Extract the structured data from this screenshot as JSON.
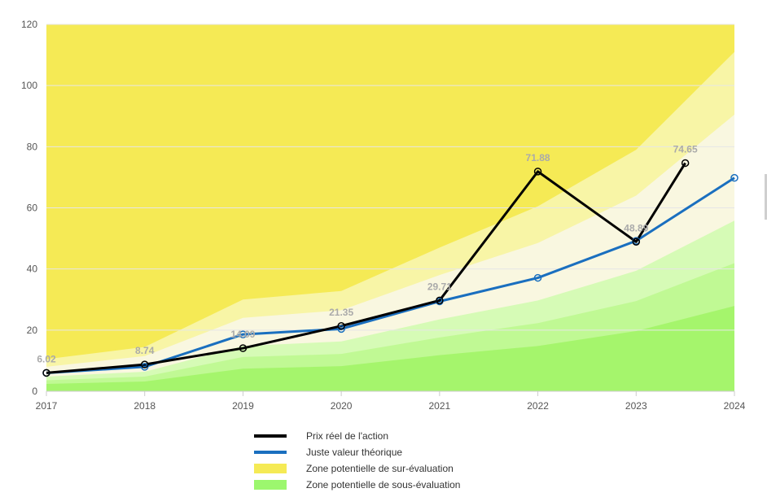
{
  "chart_data": {
    "type": "line",
    "x": [
      2017,
      2018,
      2019,
      2020,
      2021,
      2022,
      2023,
      2024
    ],
    "ylim": [
      0,
      120
    ],
    "yticks": [
      0,
      20,
      40,
      60,
      80,
      100,
      120
    ],
    "xticks": [
      "2017",
      "2018",
      "2019",
      "2020",
      "2021",
      "2022",
      "2023",
      "2024"
    ],
    "grid": true,
    "legend_position": "bottom",
    "series": [
      {
        "name": "Prix réel de l'action",
        "color": "#000000",
        "x": [
          2017,
          2018,
          2019,
          2020,
          2021,
          2022,
          2023,
          2023.5
        ],
        "values": [
          6.02,
          8.74,
          14.09,
          21.35,
          29.71,
          71.88,
          48.89,
          74.65
        ],
        "labels": [
          "6.02",
          "8.74",
          "14.09",
          "21.35",
          "29.71",
          "71.88",
          "48.89",
          "74.65"
        ]
      },
      {
        "name": "Juste valeur théorique",
        "color": "#1a6fbf",
        "x": [
          2017,
          2018,
          2019,
          2020,
          2021,
          2022,
          2023,
          2024
        ],
        "values": [
          6.0,
          8.0,
          18.6,
          20.4,
          29.4,
          37.1,
          49.2,
          69.8
        ]
      }
    ],
    "overvaluation_zone": {
      "name": "Zone potentielle de sur-évaluation",
      "color": "#f5ea55",
      "upper_bound": 120,
      "bands": [
        {
          "upper": [
            10.5,
            14.5,
            30.0,
            32.8,
            47.0,
            60.5,
            79.0,
            111.0
          ],
          "color": "#f8f5a6"
        },
        {
          "upper": [
            8.0,
            11.5,
            24.0,
            26.5,
            38.0,
            48.5,
            64.0,
            90.5
          ],
          "color": "#f9f7e0"
        }
      ]
    },
    "undervaluation_zone": {
      "name": "Zone potentielle de sous-évaluation",
      "color": "#9cf76e",
      "bands": [
        {
          "upper": [
            4.8,
            6.4,
            14.8,
            16.3,
            23.5,
            29.7,
            39.4,
            55.8
          ],
          "color": "#d6fbb6"
        },
        {
          "upper": [
            3.6,
            4.8,
            11.2,
            12.2,
            17.6,
            22.3,
            29.5,
            41.9
          ],
          "color": "#c0f994"
        },
        {
          "upper": [
            2.4,
            3.2,
            7.4,
            8.2,
            11.8,
            14.8,
            19.7,
            27.9
          ],
          "color": "#a5f56c"
        }
      ]
    }
  }
}
